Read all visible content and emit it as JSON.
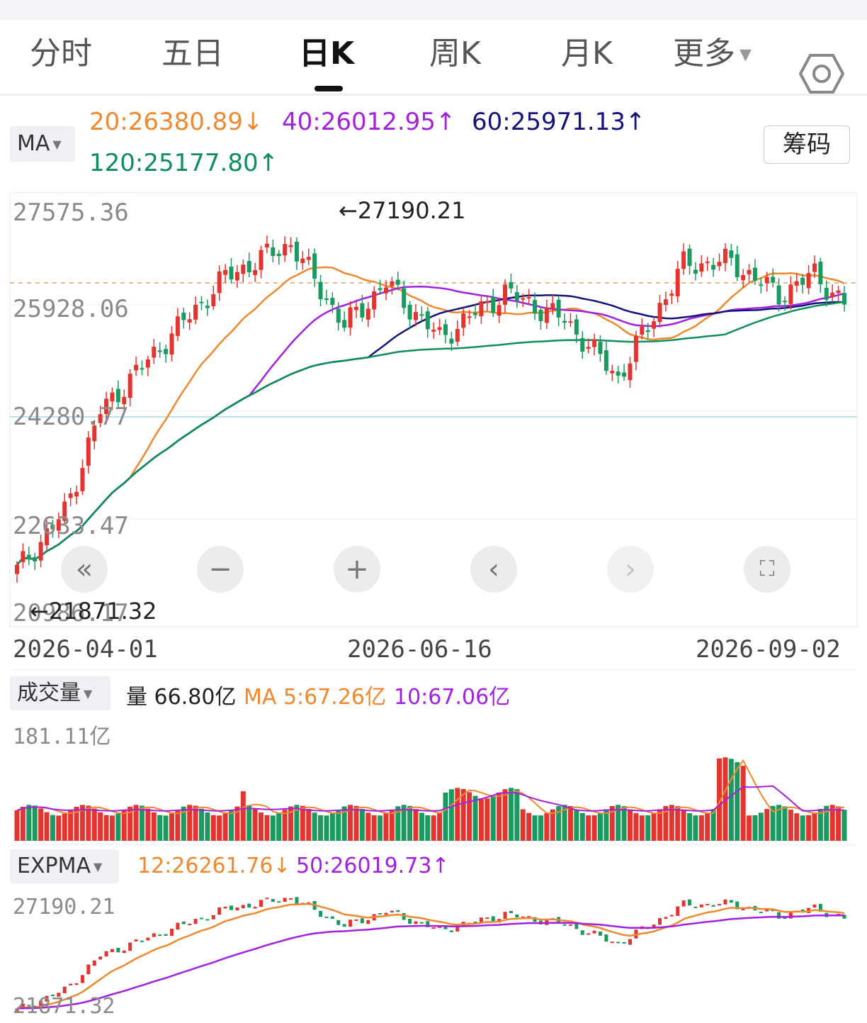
{
  "tabs": [
    {
      "label": "分时"
    },
    {
      "label": "五日"
    },
    {
      "label": "日K",
      "active": true
    },
    {
      "label": "周K"
    },
    {
      "label": "月K"
    },
    {
      "label": "更多"
    }
  ],
  "ma": {
    "selector": "MA",
    "chip": "筹码",
    "items": [
      {
        "text": "20:26380.89↓",
        "color": "#f0882d"
      },
      {
        "text": "40:26012.95↑",
        "color": "#a320e0"
      },
      {
        "text": "60:25971.13↑",
        "color": "#12127a"
      },
      {
        "text": "120:25177.80↑",
        "color": "#0e8e5a"
      }
    ]
  },
  "price_axis": {
    "labels": [
      "27575.36",
      "25928.06",
      "24280.77",
      "22633.47",
      "20986.17"
    ],
    "high_marker": "←27190.21",
    "low_marker": "←21871.32"
  },
  "dates": [
    "2026-04-01",
    "2026-06-16",
    "2026-09-02"
  ],
  "volume": {
    "selector": "成交量",
    "current": "量 66.80亿",
    "ma5": "MA 5:67.26亿",
    "ma10": "10:67.06亿",
    "max_label": "181.11亿"
  },
  "expma": {
    "selector": "EXPMA",
    "e12": "12:26261.76↓",
    "e50": "50:26019.73↑",
    "hi": "27190.21",
    "lo": "21871.32"
  },
  "colors": {
    "up": "#e3342f",
    "down": "#1a9a5e",
    "ma20": "#f0882d",
    "ma40": "#a320e0",
    "ma60": "#12127a",
    "ma120": "#0e8e5a"
  },
  "chart_data": {
    "type": "candlestick",
    "ylim": [
      20986.17,
      27575.36
    ],
    "anchors": [
      {
        "i": 0,
        "c": 21700
      },
      {
        "i": 8,
        "c": 22650
      },
      {
        "i": 14,
        "c": 24300
      },
      {
        "i": 24,
        "c": 25350
      },
      {
        "i": 35,
        "c": 26500
      },
      {
        "i": 46,
        "c": 27050
      },
      {
        "i": 55,
        "c": 25700
      },
      {
        "i": 62,
        "c": 26400
      },
      {
        "i": 71,
        "c": 25500
      },
      {
        "i": 82,
        "c": 26250
      },
      {
        "i": 92,
        "c": 25800
      },
      {
        "i": 101,
        "c": 24850
      },
      {
        "i": 112,
        "c": 26700
      },
      {
        "i": 120,
        "c": 26750
      },
      {
        "i": 128,
        "c": 26200
      },
      {
        "i": 134,
        "c": 26550
      },
      {
        "i": 139,
        "c": 26050
      }
    ],
    "count": 140,
    "ma20_end": 26380.89,
    "ma40_end": 26012.95,
    "ma60_end": 25971.13,
    "ma120_end": 25177.8
  }
}
